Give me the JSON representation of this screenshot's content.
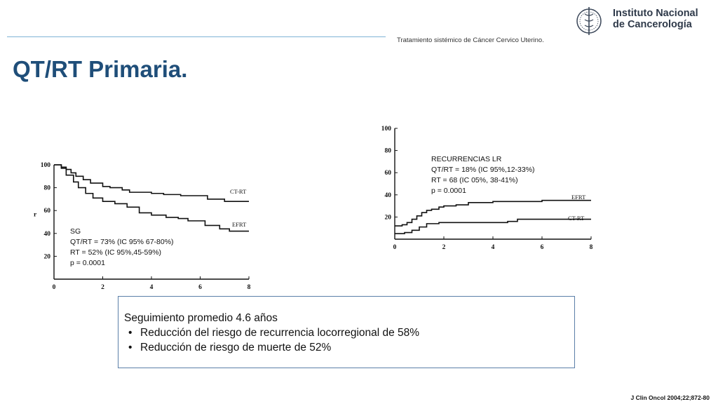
{
  "header": {
    "subtitle": "Tratamiento sistémico  de Cáncer Cervico Uterino.",
    "logo": {
      "icon": "caduceus-seal-icon",
      "line1": "Instituto Nacional",
      "line2": "de Cancerología"
    },
    "rule_color": "#7fb3d5"
  },
  "title": "QT/RT Primaria.",
  "title_color": "#1f4e79",
  "chart_data": [
    {
      "type": "line",
      "title": "",
      "xlim": [
        0,
        8
      ],
      "ylim": [
        0,
        100
      ],
      "xticks": [
        0,
        2,
        4,
        6,
        8
      ],
      "yticks": [
        20,
        40,
        60,
        80,
        100
      ],
      "stray_axis_mark": "r",
      "series": [
        {
          "name": "CT-RT",
          "x": [
            0,
            0.3,
            0.5,
            0.7,
            0.9,
            1.2,
            1.5,
            2.0,
            2.3,
            2.8,
            3.1,
            4.0,
            4.5,
            5.2,
            6.3,
            7.0,
            8.0
          ],
          "y": [
            100,
            98,
            96,
            93,
            90,
            87,
            84,
            81,
            80,
            78,
            76,
            75,
            74,
            73,
            70,
            68,
            68
          ]
        },
        {
          "name": "EFRT",
          "x": [
            0,
            0.3,
            0.5,
            0.8,
            1.0,
            1.3,
            1.6,
            2.0,
            2.5,
            3.0,
            3.5,
            4.0,
            4.6,
            5.1,
            5.5,
            6.2,
            6.8,
            7.2,
            8.0
          ],
          "y": [
            100,
            97,
            91,
            85,
            80,
            75,
            71,
            68,
            66,
            63,
            58,
            56,
            54,
            53,
            51,
            47,
            44,
            42,
            42
          ]
        }
      ],
      "annotation": [
        "SG",
        "QT/RT = 73% (IC 95% 67-80%)",
        "RT = 52% (IC 95%,45-59%)",
        "p = 0.0001"
      ]
    },
    {
      "type": "line",
      "title": "",
      "xlim": [
        0,
        8
      ],
      "ylim": [
        0,
        100
      ],
      "xticks": [
        0,
        2,
        4,
        6,
        8
      ],
      "yticks": [
        20,
        40,
        60,
        80,
        100
      ],
      "series": [
        {
          "name": "EFRT",
          "x": [
            0,
            0.3,
            0.5,
            0.7,
            0.9,
            1.1,
            1.3,
            1.5,
            1.8,
            2.0,
            2.5,
            3.0,
            4.0,
            5.0,
            5.5,
            6.0,
            8.0
          ],
          "y": [
            12,
            13,
            15,
            18,
            21,
            24,
            26,
            27,
            29,
            30,
            31,
            33,
            34,
            34,
            34,
            35,
            35
          ]
        },
        {
          "name": "CT-RT",
          "x": [
            0,
            0.4,
            0.7,
            1.0,
            1.3,
            1.8,
            3.0,
            4.0,
            4.6,
            5.0,
            8.0
          ],
          "y": [
            5,
            6,
            8,
            11,
            14,
            15,
            15,
            15,
            16,
            18,
            18
          ]
        }
      ],
      "annotation": [
        "RECURRENCIAS LR",
        "QT/RT = 18% (IC 95%,12-33%)",
        "RT = 68 (IC 05%, 38-41%)",
        "p = 0.0001"
      ]
    }
  ],
  "summary": {
    "heading": "Seguimiento promedio 4.6 años",
    "bullets": [
      "Reducción del riesgo de recurrencia locorregional de 58%",
      "Reducción de riesgo de muerte de 52%"
    ],
    "border_color": "#5b7fa8"
  },
  "citation": "J Clin Oncol 2004;22;872-80"
}
